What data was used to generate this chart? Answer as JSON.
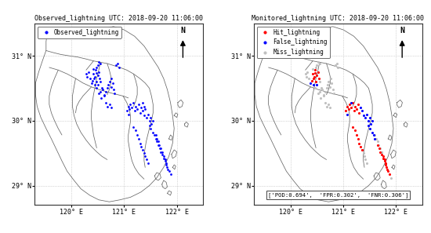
{
  "title_left": "Observed_lightning UTC: 2018-09-20 11:06:00",
  "title_right": "Monitored_lightning UTC: 2018-09-20 11:06:00",
  "xlim": [
    119.3,
    122.5
  ],
  "ylim": [
    28.7,
    31.5
  ],
  "xticks": [
    120,
    121,
    122
  ],
  "yticks": [
    29,
    30,
    31
  ],
  "xlabel_labels": [
    "120° E",
    "121° E",
    "122° E"
  ],
  "ylabel_labels": [
    "29° N",
    "30° N",
    "31° N"
  ],
  "stats_text": "['POD:0.694',  'FPR:0.302',  'FNR:0.306']",
  "observed_color": "#0000FF",
  "hit_color": "#FF0000",
  "false_color": "#0000FF",
  "miss_color": "#C0C0C0",
  "background_color": "#FFFFFF",
  "map_line_color": "#666666",
  "grid_color": "#AAAAAA",
  "observed_points": [
    [
      120.42,
      30.72
    ],
    [
      120.45,
      30.68
    ],
    [
      120.47,
      30.74
    ],
    [
      120.5,
      30.7
    ],
    [
      120.43,
      30.65
    ],
    [
      120.48,
      30.6
    ],
    [
      120.52,
      30.75
    ],
    [
      120.4,
      30.62
    ],
    [
      120.46,
      30.78
    ],
    [
      120.44,
      30.55
    ],
    [
      120.38,
      30.58
    ],
    [
      120.53,
      30.65
    ],
    [
      120.5,
      30.55
    ],
    [
      120.55,
      30.6
    ],
    [
      120.47,
      30.5
    ],
    [
      120.42,
      30.8
    ],
    [
      120.55,
      30.45
    ],
    [
      120.58,
      30.5
    ],
    [
      120.52,
      30.42
    ],
    [
      120.6,
      30.48
    ],
    [
      120.62,
      30.4
    ],
    [
      120.57,
      30.35
    ],
    [
      120.65,
      30.45
    ],
    [
      120.63,
      30.38
    ],
    [
      120.7,
      30.55
    ],
    [
      120.68,
      30.5
    ],
    [
      120.72,
      30.6
    ],
    [
      120.75,
      30.52
    ],
    [
      120.78,
      30.58
    ],
    [
      120.8,
      30.48
    ],
    [
      120.76,
      30.65
    ],
    [
      120.82,
      30.42
    ],
    [
      121.08,
      30.22
    ],
    [
      121.1,
      30.18
    ],
    [
      121.12,
      30.25
    ],
    [
      121.05,
      30.15
    ],
    [
      121.15,
      30.2
    ],
    [
      121.18,
      30.28
    ],
    [
      121.2,
      30.15
    ],
    [
      121.08,
      30.1
    ],
    [
      121.22,
      30.22
    ],
    [
      121.25,
      30.18
    ],
    [
      121.28,
      30.25
    ],
    [
      121.3,
      30.12
    ],
    [
      121.32,
      30.2
    ],
    [
      121.35,
      30.15
    ],
    [
      121.38,
      30.08
    ],
    [
      121.4,
      30.18
    ],
    [
      121.42,
      30.05
    ],
    [
      121.45,
      30.1
    ],
    [
      121.48,
      30.0
    ],
    [
      121.5,
      30.05
    ],
    [
      121.52,
      29.95
    ],
    [
      121.55,
      30.0
    ],
    [
      121.5,
      29.88
    ],
    [
      121.48,
      29.92
    ],
    [
      121.55,
      29.82
    ],
    [
      121.58,
      29.78
    ],
    [
      121.6,
      29.72
    ],
    [
      121.62,
      29.68
    ],
    [
      121.65,
      29.62
    ],
    [
      121.68,
      29.58
    ],
    [
      121.7,
      29.52
    ],
    [
      121.72,
      29.48
    ],
    [
      121.75,
      29.42
    ],
    [
      121.78,
      29.38
    ],
    [
      121.8,
      29.32
    ],
    [
      121.82,
      29.28
    ],
    [
      121.85,
      29.22
    ],
    [
      121.88,
      29.18
    ],
    [
      121.83,
      29.25
    ],
    [
      121.8,
      29.35
    ],
    [
      121.78,
      29.4
    ],
    [
      121.75,
      29.45
    ],
    [
      121.72,
      29.52
    ],
    [
      121.7,
      29.58
    ],
    [
      121.67,
      29.62
    ],
    [
      121.65,
      29.68
    ],
    [
      121.62,
      29.72
    ],
    [
      121.6,
      29.78
    ],
    [
      120.5,
      30.85
    ],
    [
      120.48,
      30.82
    ],
    [
      120.55,
      30.88
    ],
    [
      120.52,
      30.9
    ],
    [
      120.88,
      30.88
    ],
    [
      120.85,
      30.85
    ],
    [
      120.9,
      30.82
    ],
    [
      121.35,
      30.28
    ],
    [
      121.38,
      30.22
    ],
    [
      121.18,
      29.9
    ],
    [
      121.22,
      29.85
    ],
    [
      121.25,
      29.78
    ],
    [
      121.28,
      29.72
    ],
    [
      121.3,
      29.65
    ],
    [
      121.32,
      29.6
    ],
    [
      121.35,
      29.55
    ],
    [
      121.38,
      29.5
    ],
    [
      121.4,
      29.45
    ],
    [
      121.42,
      29.4
    ],
    [
      121.45,
      29.35
    ],
    [
      120.3,
      30.68
    ],
    [
      120.28,
      30.72
    ],
    [
      120.32,
      30.75
    ],
    [
      120.35,
      30.65
    ],
    [
      120.65,
      30.28
    ],
    [
      120.68,
      30.22
    ],
    [
      120.72,
      30.25
    ],
    [
      120.75,
      30.2
    ]
  ],
  "hit_points": [
    [
      120.42,
      30.72
    ],
    [
      120.45,
      30.68
    ],
    [
      120.47,
      30.74
    ],
    [
      120.5,
      30.7
    ],
    [
      120.43,
      30.65
    ],
    [
      120.48,
      30.6
    ],
    [
      120.52,
      30.75
    ],
    [
      120.4,
      30.62
    ],
    [
      120.46,
      30.78
    ],
    [
      120.53,
      30.65
    ],
    [
      121.08,
      30.22
    ],
    [
      121.1,
      30.18
    ],
    [
      121.12,
      30.25
    ],
    [
      121.05,
      30.15
    ],
    [
      121.15,
      30.2
    ],
    [
      121.18,
      30.28
    ],
    [
      121.2,
      30.15
    ],
    [
      121.22,
      30.22
    ],
    [
      121.25,
      30.18
    ],
    [
      121.28,
      30.25
    ],
    [
      121.3,
      30.12
    ],
    [
      121.65,
      29.62
    ],
    [
      121.68,
      29.58
    ],
    [
      121.7,
      29.52
    ],
    [
      121.72,
      29.48
    ],
    [
      121.75,
      29.42
    ],
    [
      121.78,
      29.38
    ],
    [
      121.8,
      29.32
    ],
    [
      121.82,
      29.28
    ],
    [
      121.85,
      29.22
    ],
    [
      121.88,
      29.18
    ],
    [
      121.83,
      29.25
    ],
    [
      121.8,
      29.35
    ],
    [
      121.78,
      29.4
    ],
    [
      121.75,
      29.45
    ],
    [
      121.18,
      29.9
    ],
    [
      121.22,
      29.85
    ],
    [
      121.25,
      29.78
    ],
    [
      121.28,
      29.72
    ],
    [
      121.3,
      29.65
    ],
    [
      121.32,
      29.6
    ],
    [
      121.35,
      29.55
    ]
  ],
  "false_points": [
    [
      120.44,
      30.55
    ],
    [
      120.38,
      30.58
    ],
    [
      120.5,
      30.55
    ],
    [
      121.32,
      30.2
    ],
    [
      121.35,
      30.15
    ],
    [
      121.38,
      30.08
    ],
    [
      121.08,
      30.1
    ],
    [
      121.15,
      30.28
    ],
    [
      121.42,
      30.05
    ],
    [
      121.45,
      30.1
    ],
    [
      121.48,
      30.0
    ],
    [
      121.5,
      30.05
    ],
    [
      121.52,
      29.95
    ],
    [
      121.55,
      30.0
    ],
    [
      121.5,
      29.88
    ],
    [
      121.48,
      29.92
    ],
    [
      121.55,
      29.82
    ],
    [
      121.58,
      29.78
    ],
    [
      121.6,
      29.72
    ]
  ],
  "miss_points": [
    [
      120.55,
      30.45
    ],
    [
      120.58,
      30.5
    ],
    [
      120.52,
      30.42
    ],
    [
      120.6,
      30.48
    ],
    [
      120.62,
      30.4
    ],
    [
      120.57,
      30.35
    ],
    [
      120.65,
      30.45
    ],
    [
      120.63,
      30.38
    ],
    [
      120.7,
      30.55
    ],
    [
      120.68,
      30.5
    ],
    [
      120.72,
      30.6
    ],
    [
      120.75,
      30.52
    ],
    [
      120.78,
      30.58
    ],
    [
      120.8,
      30.48
    ],
    [
      120.76,
      30.65
    ],
    [
      120.82,
      30.42
    ],
    [
      120.88,
      30.88
    ],
    [
      120.85,
      30.85
    ],
    [
      120.9,
      30.82
    ],
    [
      120.5,
      30.85
    ],
    [
      120.48,
      30.82
    ],
    [
      120.55,
      30.88
    ],
    [
      120.52,
      30.9
    ],
    [
      120.3,
      30.68
    ],
    [
      120.28,
      30.72
    ],
    [
      120.32,
      30.75
    ],
    [
      120.35,
      30.65
    ],
    [
      120.65,
      30.28
    ],
    [
      120.68,
      30.22
    ],
    [
      120.72,
      30.25
    ],
    [
      120.75,
      30.2
    ],
    [
      121.4,
      29.45
    ],
    [
      121.42,
      29.4
    ],
    [
      121.45,
      29.35
    ],
    [
      121.38,
      29.5
    ],
    [
      121.35,
      29.55
    ],
    [
      121.62,
      29.72
    ],
    [
      121.65,
      29.68
    ],
    [
      121.6,
      29.78
    ],
    [
      121.67,
      29.62
    ],
    [
      121.7,
      29.58
    ],
    [
      121.72,
      29.52
    ],
    [
      120.47,
      30.5
    ],
    [
      120.42,
      30.8
    ],
    [
      120.55,
      30.6
    ],
    [
      121.9,
      29.12
    ],
    [
      121.72,
      29.52
    ]
  ],
  "borders": {
    "outer_coast": [
      [
        119.55,
        31.38
      ],
      [
        119.7,
        31.42
      ],
      [
        119.95,
        31.4
      ],
      [
        120.2,
        31.38
      ],
      [
        120.45,
        31.38
      ],
      [
        120.62,
        31.42
      ],
      [
        120.8,
        31.45
      ],
      [
        121.0,
        31.4
      ],
      [
        121.2,
        31.3
      ],
      [
        121.38,
        31.15
      ],
      [
        121.52,
        30.98
      ],
      [
        121.65,
        30.82
      ],
      [
        121.75,
        30.65
      ],
      [
        121.82,
        30.48
      ],
      [
        121.88,
        30.28
      ],
      [
        121.92,
        30.08
      ],
      [
        121.95,
        29.88
      ],
      [
        121.92,
        29.65
      ],
      [
        121.85,
        29.45
      ],
      [
        121.75,
        29.28
      ],
      [
        121.62,
        29.12
      ],
      [
        121.48,
        29.0
      ],
      [
        121.32,
        28.9
      ],
      [
        121.12,
        28.82
      ],
      [
        120.92,
        28.78
      ],
      [
        120.72,
        28.75
      ],
      [
        120.52,
        28.78
      ],
      [
        120.35,
        28.85
      ],
      [
        120.18,
        28.95
      ],
      [
        120.05,
        29.08
      ],
      [
        119.92,
        29.22
      ],
      [
        119.82,
        29.38
      ],
      [
        119.72,
        29.55
      ],
      [
        119.62,
        29.72
      ],
      [
        119.52,
        29.88
      ],
      [
        119.42,
        30.05
      ],
      [
        119.35,
        30.22
      ],
      [
        119.32,
        30.4
      ],
      [
        119.32,
        30.58
      ],
      [
        119.38,
        30.75
      ],
      [
        119.45,
        30.92
      ],
      [
        119.52,
        31.08
      ],
      [
        119.52,
        31.22
      ],
      [
        119.55,
        31.38
      ]
    ],
    "inner_lines": [
      [
        [
          119.58,
          30.82
        ],
        [
          119.75,
          30.78
        ],
        [
          119.92,
          30.72
        ],
        [
          120.08,
          30.65
        ],
        [
          120.22,
          30.58
        ],
        [
          120.38,
          30.52
        ],
        [
          120.52,
          30.48
        ],
        [
          120.65,
          30.45
        ],
        [
          120.78,
          30.42
        ],
        [
          120.88,
          30.4
        ],
        [
          120.98,
          30.38
        ],
        [
          121.08,
          30.35
        ]
      ],
      [
        [
          119.52,
          31.08
        ],
        [
          119.65,
          31.05
        ],
        [
          119.8,
          31.02
        ],
        [
          119.95,
          31.0
        ],
        [
          120.12,
          30.98
        ],
        [
          120.28,
          30.95
        ],
        [
          120.42,
          30.92
        ],
        [
          120.55,
          30.9
        ],
        [
          120.68,
          30.88
        ],
        [
          120.8,
          30.85
        ],
        [
          120.92,
          30.82
        ],
        [
          121.05,
          30.78
        ],
        [
          121.18,
          30.72
        ],
        [
          121.3,
          30.65
        ],
        [
          121.4,
          30.58
        ],
        [
          121.48,
          30.5
        ]
      ],
      [
        [
          120.08,
          30.65
        ],
        [
          120.05,
          30.52
        ],
        [
          120.02,
          30.38
        ],
        [
          120.02,
          30.22
        ],
        [
          120.05,
          30.08
        ],
        [
          120.1,
          29.95
        ],
        [
          120.18,
          29.82
        ],
        [
          120.28,
          29.7
        ],
        [
          120.38,
          29.6
        ],
        [
          120.48,
          29.52
        ],
        [
          120.58,
          29.45
        ],
        [
          120.68,
          29.4
        ]
      ],
      [
        [
          120.98,
          30.38
        ],
        [
          121.05,
          30.28
        ],
        [
          121.1,
          30.18
        ],
        [
          121.12,
          30.08
        ],
        [
          121.12,
          29.98
        ],
        [
          121.1,
          29.88
        ],
        [
          121.08,
          29.78
        ],
        [
          121.08,
          29.68
        ],
        [
          121.1,
          29.58
        ],
        [
          121.12,
          29.48
        ],
        [
          121.15,
          29.38
        ],
        [
          121.2,
          29.28
        ],
        [
          121.28,
          29.18
        ],
        [
          121.38,
          29.1
        ]
      ],
      [
        [
          120.55,
          30.9
        ],
        [
          120.52,
          30.78
        ],
        [
          120.48,
          30.65
        ],
        [
          120.45,
          30.52
        ],
        [
          120.42,
          30.4
        ],
        [
          120.4,
          30.28
        ],
        [
          120.38,
          30.15
        ],
        [
          120.38,
          30.02
        ],
        [
          120.4,
          29.9
        ],
        [
          120.42,
          29.78
        ],
        [
          120.45,
          29.68
        ],
        [
          120.48,
          29.58
        ]
      ],
      [
        [
          121.48,
          30.5
        ],
        [
          121.52,
          30.38
        ],
        [
          121.55,
          30.25
        ],
        [
          121.55,
          30.12
        ],
        [
          121.52,
          30.0
        ],
        [
          121.48,
          29.88
        ],
        [
          121.45,
          29.78
        ],
        [
          121.42,
          29.68
        ],
        [
          121.4,
          29.58
        ],
        [
          121.38,
          29.48
        ],
        [
          121.38,
          29.38
        ],
        [
          121.4,
          29.28
        ]
      ],
      [
        [
          120.38,
          30.52
        ],
        [
          120.3,
          30.45
        ],
        [
          120.22,
          30.38
        ],
        [
          120.15,
          30.3
        ],
        [
          120.1,
          30.22
        ],
        [
          120.08,
          30.12
        ]
      ],
      [
        [
          119.75,
          30.78
        ],
        [
          119.68,
          30.65
        ],
        [
          119.62,
          30.52
        ],
        [
          119.58,
          30.38
        ],
        [
          119.58,
          30.25
        ],
        [
          119.62,
          30.12
        ],
        [
          119.68,
          30.0
        ],
        [
          119.75,
          29.88
        ],
        [
          119.82,
          29.78
        ]
      ],
      [
        [
          120.42,
          30.92
        ],
        [
          120.35,
          30.85
        ],
        [
          120.28,
          30.78
        ]
      ],
      [
        [
          121.18,
          30.72
        ],
        [
          121.22,
          30.62
        ],
        [
          121.25,
          30.52
        ],
        [
          121.25,
          30.4
        ],
        [
          121.22,
          30.3
        ],
        [
          121.18,
          30.22
        ]
      ],
      [
        [
          120.68,
          30.88
        ],
        [
          120.72,
          30.78
        ],
        [
          120.75,
          30.68
        ],
        [
          120.75,
          30.58
        ],
        [
          120.72,
          30.48
        ],
        [
          120.68,
          30.4
        ]
      ]
    ],
    "islands": [
      [
        [
          122.02,
          30.28
        ],
        [
          122.08,
          30.32
        ],
        [
          122.12,
          30.28
        ],
        [
          122.1,
          30.22
        ],
        [
          122.05,
          30.2
        ],
        [
          122.02,
          30.24
        ]
      ],
      [
        [
          121.95,
          30.08
        ],
        [
          121.98,
          30.12
        ],
        [
          122.02,
          30.1
        ],
        [
          122.0,
          30.05
        ]
      ],
      [
        [
          122.15,
          29.95
        ],
        [
          122.18,
          29.98
        ],
        [
          122.22,
          29.95
        ],
        [
          122.2,
          29.9
        ],
        [
          122.15,
          29.92
        ]
      ],
      [
        [
          121.85,
          29.72
        ],
        [
          121.88,
          29.78
        ],
        [
          121.92,
          29.75
        ],
        [
          121.9,
          29.7
        ]
      ],
      [
        [
          121.9,
          29.48
        ],
        [
          121.95,
          29.55
        ],
        [
          122.0,
          29.52
        ],
        [
          121.98,
          29.45
        ],
        [
          121.92,
          29.42
        ]
      ],
      [
        [
          121.92,
          29.28
        ],
        [
          121.95,
          29.32
        ],
        [
          121.98,
          29.3
        ],
        [
          121.96,
          29.25
        ]
      ],
      [
        [
          121.58,
          29.15
        ],
        [
          121.62,
          29.2
        ],
        [
          121.68,
          29.18
        ],
        [
          121.7,
          29.12
        ],
        [
          121.65,
          29.08
        ],
        [
          121.6,
          29.1
        ]
      ],
      [
        [
          121.72,
          29.02
        ],
        [
          121.75,
          29.08
        ],
        [
          121.8,
          29.05
        ],
        [
          121.82,
          28.98
        ],
        [
          121.78,
          28.95
        ],
        [
          121.73,
          28.98
        ]
      ],
      [
        [
          121.82,
          28.88
        ],
        [
          121.85,
          28.92
        ],
        [
          121.9,
          28.9
        ],
        [
          121.88,
          28.85
        ]
      ]
    ]
  }
}
